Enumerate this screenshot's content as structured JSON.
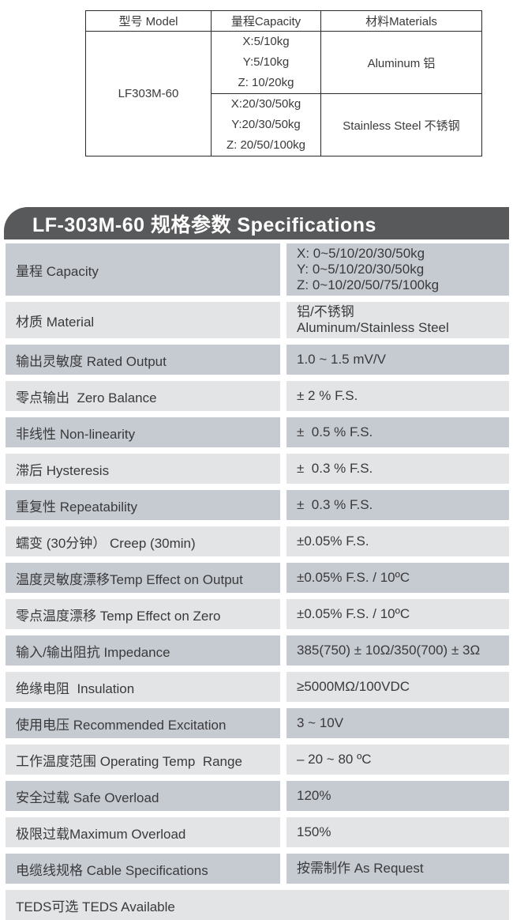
{
  "colors": {
    "banner_bg": "#58595b",
    "banner_text": "#ffffff",
    "row_dark": "#c6cbd1",
    "row_light": "#e2e4e6",
    "text": "#3a3a3c",
    "table_border": "#2b2b2b"
  },
  "top_table": {
    "headers": [
      "型号 Model",
      "量程Capacity",
      "材料Materials"
    ],
    "model": "LF303M-60",
    "groups": [
      {
        "capacity_lines": [
          "X:5/10kg",
          "Y:5/10kg",
          "Z: 10/20kg"
        ],
        "material": "Aluminum 铝"
      },
      {
        "capacity_lines": [
          "X:20/30/50kg",
          "Y:20/30/50kg",
          "Z: 20/50/100kg"
        ],
        "material": "Stainless Steel 不锈钢"
      }
    ]
  },
  "spec_section": {
    "title": "LF-303M-60 规格参数 Specifications",
    "rows": [
      {
        "label": "量程 Capacity",
        "value_lines": [
          "X: 0~5/10/20/30/50kg",
          "Y: 0~5/10/20/30/50kg",
          "Z: 0~10/20/50/75/100kg"
        ],
        "full_width": false
      },
      {
        "label": "材质 Material",
        "value_lines": [
          "铝/不锈钢",
          "Aluminum/Stainless Steel"
        ],
        "full_width": false
      },
      {
        "label": "输出灵敏度 Rated Output",
        "value_lines": [
          "1.0 ~ 1.5 mV/V"
        ],
        "full_width": false
      },
      {
        "label": "零点输出  Zero Balance",
        "value_lines": [
          "± 2 % F.S."
        ],
        "full_width": false
      },
      {
        "label": "非线性 Non-linearity",
        "value_lines": [
          "±  0.5 % F.S."
        ],
        "full_width": false
      },
      {
        "label": "滞后 Hysteresis",
        "value_lines": [
          "±  0.3 % F.S."
        ],
        "full_width": false
      },
      {
        "label": "重复性 Repeatability",
        "value_lines": [
          "±  0.3 % F.S."
        ],
        "full_width": false
      },
      {
        "label": "蠕变 (30分钟） Creep (30min)",
        "value_lines": [
          "±0.05% F.S."
        ],
        "full_width": false
      },
      {
        "label": "温度灵敏度漂移Temp Effect on Output",
        "value_lines": [
          "±0.05% F.S. / 10ºC"
        ],
        "full_width": false
      },
      {
        "label": "零点温度漂移 Temp Effect on Zero",
        "value_lines": [
          "±0.05% F.S. / 10ºC"
        ],
        "full_width": false
      },
      {
        "label": "输入/输出阻抗 Impedance",
        "value_lines": [
          "385(750) ± 10Ω/350(700) ± 3Ω"
        ],
        "full_width": false
      },
      {
        "label": "绝缘电阻  Insulation",
        "value_lines": [
          "≥5000MΩ/100VDC"
        ],
        "full_width": false
      },
      {
        "label": "使用电压 Recommended Excitation",
        "value_lines": [
          "3 ~ 10V"
        ],
        "full_width": false
      },
      {
        "label": "工作温度范围 Operating Temp  Range",
        "value_lines": [
          "– 20 ~ 80 ºC"
        ],
        "full_width": false
      },
      {
        "label": "安全过载 Safe Overload",
        "value_lines": [
          "120%"
        ],
        "full_width": false
      },
      {
        "label": "极限过载Maximum Overload",
        "value_lines": [
          "150%"
        ],
        "full_width": false
      },
      {
        "label": "电缆线规格 Cable Specifications",
        "value_lines": [
          "按需制作 As Request"
        ],
        "full_width": false
      },
      {
        "label": "TEDS可选 TEDS Available",
        "value_lines": [],
        "full_width": true
      }
    ]
  }
}
